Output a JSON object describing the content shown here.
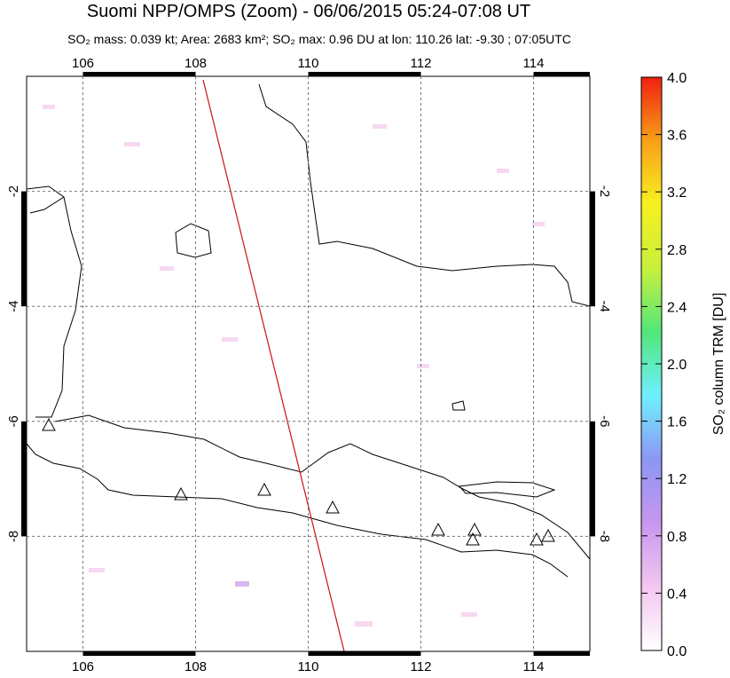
{
  "chart_data": {
    "type": "map",
    "title": "Suomi NPP/OMPS (Zoom) - 06/06/2015 05:24-07:08 UT",
    "subtitle": "SO₂ mass: 0.039 kt; Area: 2683 km²; SO₂ max: 0.96 DU at lon: 110.26 lat: -9.30 ; 07:05UTC",
    "xlim": [
      105,
      115
    ],
    "xticks": [
      106,
      108,
      110,
      112,
      114
    ],
    "ylim": [
      -10,
      0
    ],
    "yticks": [
      -2,
      -4,
      -6,
      -8
    ],
    "grid": true,
    "colorbar": {
      "label": "SO₂ column TRM [DU]",
      "lim": [
        0,
        4
      ],
      "ticks": [
        {
          "value": 0,
          "label": "0.0"
        },
        {
          "value": 0.4,
          "label": "0.4"
        },
        {
          "value": 0.8,
          "label": "0.8"
        },
        {
          "value": 1.2,
          "label": "1.2"
        },
        {
          "value": 1.6,
          "label": "1.6"
        },
        {
          "value": 2,
          "label": "2.0"
        },
        {
          "value": 2.4,
          "label": "2.4"
        },
        {
          "value": 2.8,
          "label": "2.8"
        },
        {
          "value": 3.2,
          "label": "3.2"
        },
        {
          "value": 3.6,
          "label": "3.6"
        },
        {
          "value": 4,
          "label": "4.0"
        }
      ],
      "colors": [
        "#ffffff",
        "#f4c6f0",
        "#c896ee",
        "#8c96f4",
        "#6ef0ff",
        "#52e67a",
        "#c8f03c",
        "#f8f020",
        "#f8a018",
        "#f02010"
      ]
    }
  }
}
